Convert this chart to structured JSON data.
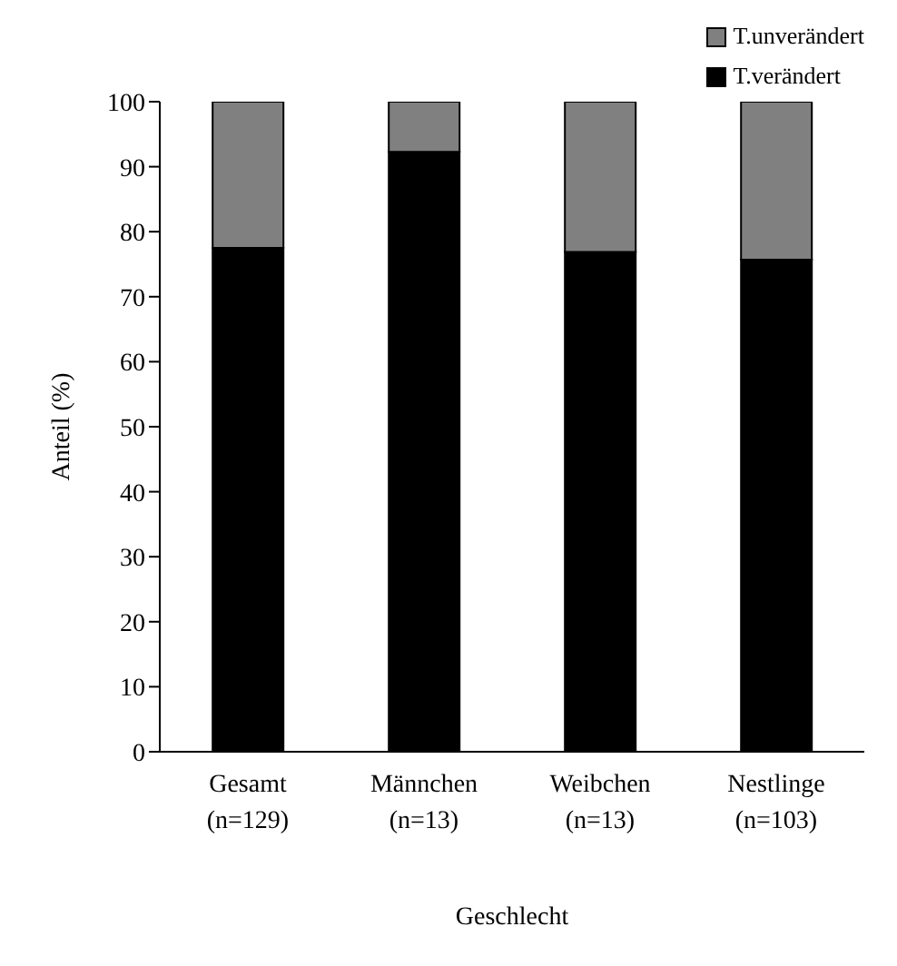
{
  "chart_data": {
    "type": "bar",
    "stacked": true,
    "categories": [
      "Gesamt\n(n=129)",
      "Männchen\n(n=13)",
      "Weibchen\n(n=13)",
      "Nestlinge\n(n=103)"
    ],
    "series": [
      {
        "name": "T.verändert",
        "color": "#000000",
        "values": [
          77.5,
          92.3,
          76.9,
          75.7
        ]
      },
      {
        "name": "T.unverändert",
        "color": "#808080",
        "values": [
          22.5,
          7.7,
          23.1,
          24.3
        ]
      }
    ],
    "xlabel": "Geschlecht",
    "ylabel": "Anteil (%)",
    "ylim": [
      0,
      100
    ],
    "yticks": [
      0,
      10,
      20,
      30,
      40,
      50,
      60,
      70,
      80,
      90,
      100
    ],
    "grid": false,
    "legend": "top right"
  }
}
